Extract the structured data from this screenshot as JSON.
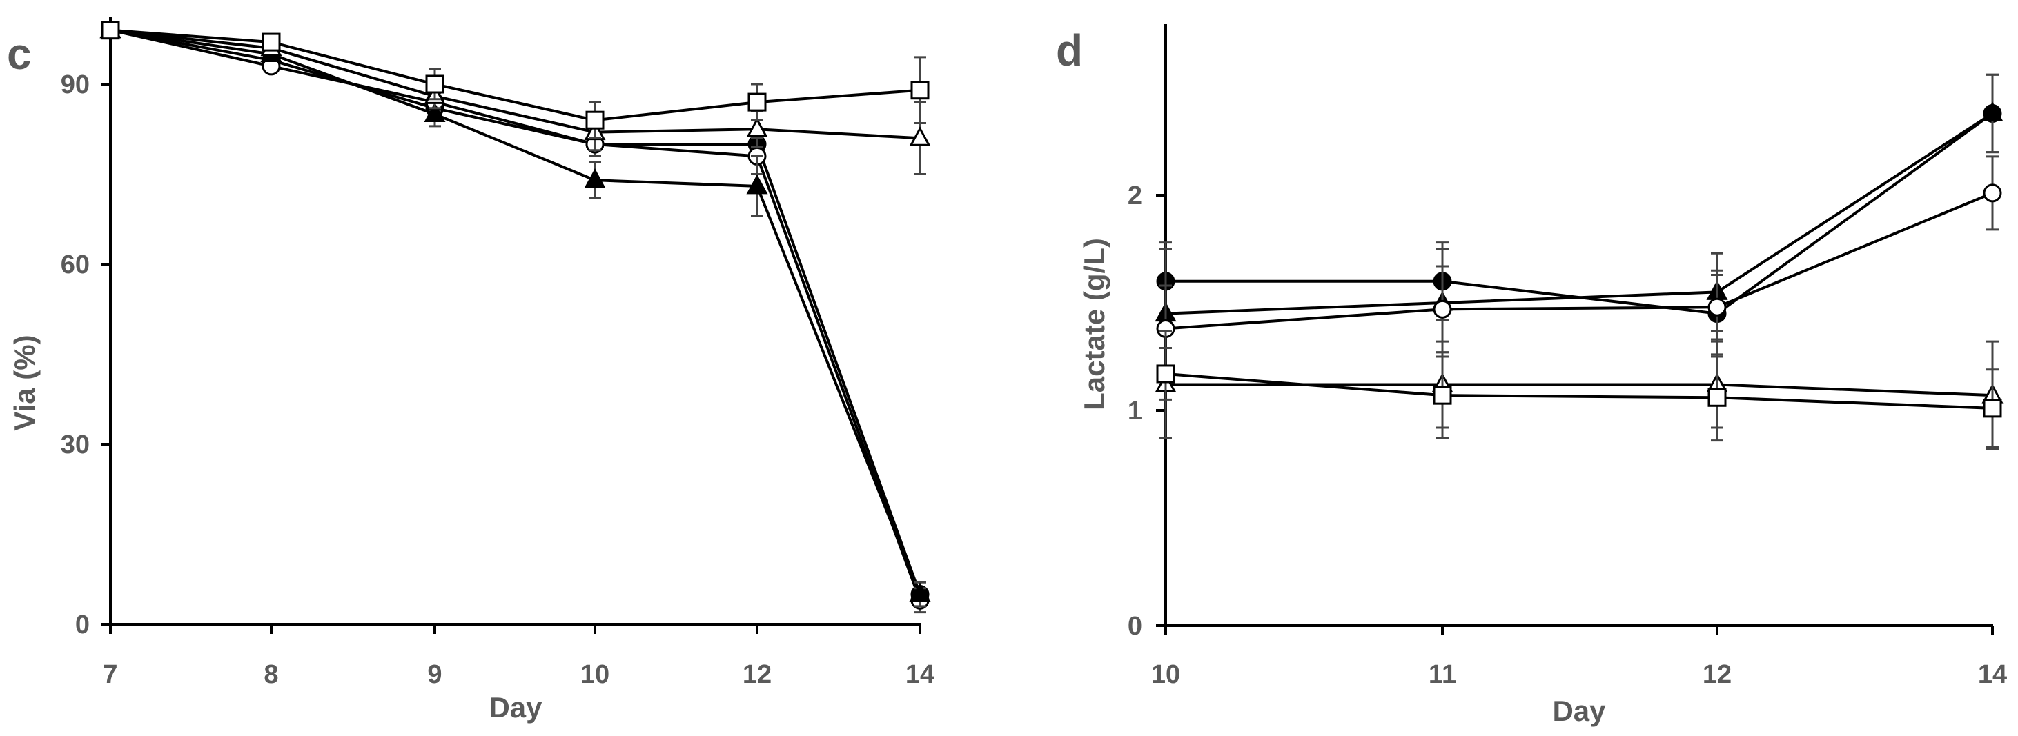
{
  "chart_data": [
    {
      "panel": "c",
      "type": "line",
      "xlabel": "Day",
      "ylabel": "Via (%)",
      "x": [
        "7",
        "8",
        "9",
        "10",
        "12",
        "14"
      ],
      "xticks": [
        "7",
        "8",
        "9",
        "10",
        "12",
        "14"
      ],
      "ylim": [
        0,
        100
      ],
      "yticks": [
        "0",
        "30",
        "60",
        "90"
      ],
      "series": [
        {
          "marker": "circle-filled",
          "values": [
            99,
            94,
            86,
            80,
            80,
            5
          ],
          "err": [
            0,
            1,
            1.5,
            2,
            2,
            2
          ]
        },
        {
          "marker": "circle-open",
          "values": [
            99,
            93,
            87,
            80,
            78,
            4
          ],
          "err": [
            0,
            1,
            1.5,
            2,
            3,
            2
          ]
        },
        {
          "marker": "triangle-filled",
          "values": [
            99,
            95,
            85,
            74,
            73,
            5
          ],
          "err": [
            0,
            1,
            2,
            3,
            5,
            2
          ]
        },
        {
          "marker": "triangle-open",
          "values": [
            99,
            96,
            88,
            82,
            82.5,
            81
          ],
          "err": [
            0,
            1,
            2,
            3,
            3,
            6
          ]
        },
        {
          "marker": "square-open",
          "values": [
            99,
            97,
            90,
            84,
            87,
            89
          ],
          "err": [
            0,
            1,
            2.5,
            3,
            3,
            5.5
          ]
        }
      ]
    },
    {
      "panel": "d",
      "type": "line",
      "xlabel": "Day",
      "ylabel": "Lactate (g/L)",
      "x": [
        "10",
        "11",
        "12",
        "14"
      ],
      "xticks": [
        "10",
        "11",
        "12",
        "14"
      ],
      "ylim": [
        0,
        2.8
      ],
      "yticks": [
        "0",
        "1",
        "2"
      ],
      "series": [
        {
          "marker": "circle-filled",
          "values": [
            1.6,
            1.6,
            1.45,
            2.38
          ],
          "err": [
            0.18,
            0.18,
            0.2,
            0.18
          ]
        },
        {
          "marker": "triangle-filled",
          "values": [
            1.45,
            1.5,
            1.55,
            2.38
          ],
          "err": [
            0.3,
            0.25,
            0.18,
            0.18
          ]
        },
        {
          "marker": "circle-open",
          "values": [
            1.38,
            1.47,
            1.48,
            2.01
          ],
          "err": [
            0.2,
            0.2,
            0.15,
            0.17
          ]
        },
        {
          "marker": "triangle-open",
          "values": [
            1.12,
            1.12,
            1.12,
            1.07
          ],
          "err": [
            0.25,
            0.2,
            0.2,
            0.25
          ]
        },
        {
          "marker": "square-open",
          "values": [
            1.17,
            1.07,
            1.06,
            1.01
          ],
          "err": [
            0.12,
            0.2,
            0.2,
            0.18
          ]
        }
      ]
    }
  ]
}
